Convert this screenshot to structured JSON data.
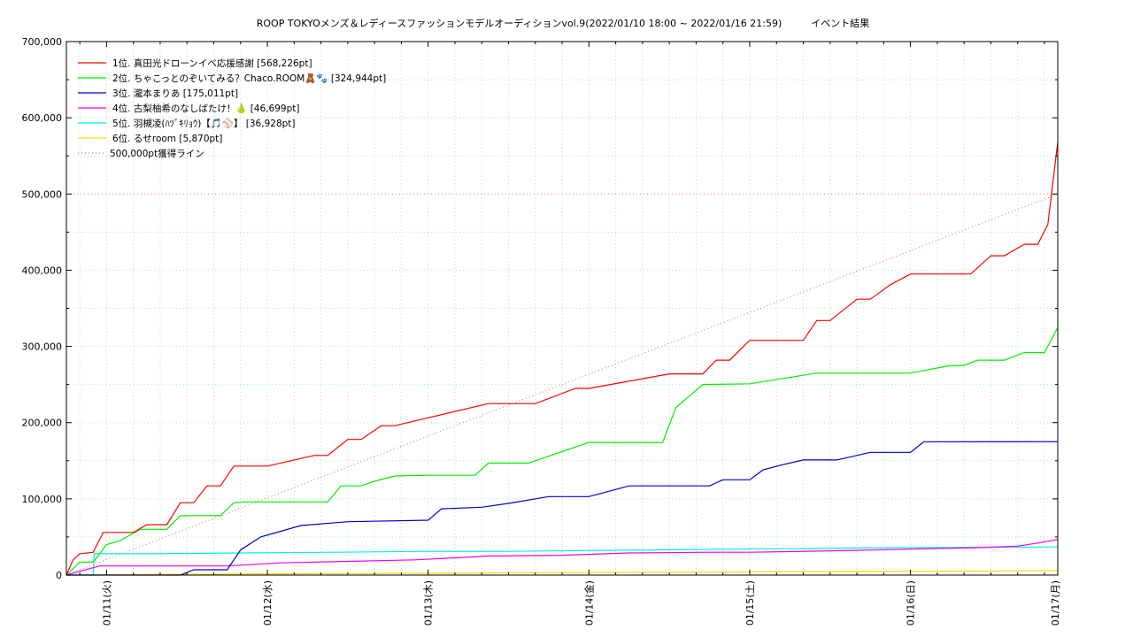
{
  "chart_data": {
    "type": "line",
    "title": "ROOP TOKYOメンズ＆レディースファッションモデルオーディションvol.9(2022/01/10 18:00 ~ 2022/01/16 21:59)　　　イベント結果",
    "xlabel": "",
    "ylabel": "",
    "ylim": [
      0,
      700000
    ],
    "xlim": [
      "2022-01-10T18:00",
      "2022-01-16T21:59"
    ],
    "y_ticks": [
      "0",
      "100,000",
      "200,000",
      "300,000",
      "400,000",
      "500,000",
      "600,000",
      "700,000"
    ],
    "y_tick_values": [
      0,
      100000,
      200000,
      300000,
      400000,
      500000,
      600000,
      700000
    ],
    "x_ticks": [
      "01/11(火)",
      "01/12(水)",
      "01/13(木)",
      "01/14(金)",
      "01/15(土)",
      "01/16(日)",
      "01/17(月)"
    ],
    "x_tick_values": [
      "2022-01-11T00:00",
      "2022-01-12T00:00",
      "2022-01-13T00:00",
      "2022-01-14T00:00",
      "2022-01-15T00:00",
      "2022-01-16T00:00",
      "2022-01-17T00:00"
    ],
    "grid": true,
    "legend_position": "top-left",
    "series": [
      {
        "name": "1位. 真田光ドローンイベ応援感謝 [568,226pt]",
        "color": "#ff0000",
        "x": [
          "2022-01-10T18:00",
          "2022-01-10T19:00",
          "2022-01-10T20:00",
          "2022-01-10T22:00",
          "2022-01-10T23:30",
          "2022-01-11T04:00",
          "2022-01-11T06:00",
          "2022-01-11T09:00",
          "2022-01-11T11:00",
          "2022-01-11T13:00",
          "2022-01-11T15:00",
          "2022-01-11T17:00",
          "2022-01-11T19:00",
          "2022-01-11T21:00",
          "2022-01-12T00:00",
          "2022-01-12T07:00",
          "2022-01-12T09:00",
          "2022-01-12T12:00",
          "2022-01-12T14:00",
          "2022-01-12T17:00",
          "2022-01-12T19:00",
          "2022-01-13T09:00",
          "2022-01-13T12:00",
          "2022-01-13T14:00",
          "2022-01-13T16:00",
          "2022-01-13T22:00",
          "2022-01-14T00:00",
          "2022-01-14T12:00",
          "2022-01-14T14:00",
          "2022-01-14T17:00",
          "2022-01-14T19:00",
          "2022-01-14T21:00",
          "2022-01-15T00:00",
          "2022-01-15T08:00",
          "2022-01-15T10:00",
          "2022-01-15T12:00",
          "2022-01-15T16:00",
          "2022-01-15T18:00",
          "2022-01-15T21:00",
          "2022-01-16T00:00",
          "2022-01-16T09:00",
          "2022-01-16T12:00",
          "2022-01-16T14:00",
          "2022-01-16T17:00",
          "2022-01-16T19:00",
          "2022-01-16T20:30",
          "2022-01-16T21:59"
        ],
        "y": [
          0,
          20000,
          28000,
          30000,
          56000,
          56000,
          66000,
          66000,
          95000,
          95000,
          117000,
          117000,
          143000,
          143000,
          143000,
          157000,
          157000,
          178000,
          178000,
          196000,
          196000,
          225000,
          225000,
          225000,
          225000,
          245000,
          245000,
          264000,
          264000,
          264000,
          282000,
          282000,
          308000,
          308000,
          334000,
          334000,
          362000,
          362000,
          381000,
          395000,
          395000,
          419000,
          419000,
          434000,
          434000,
          460000,
          568226
        ]
      },
      {
        "name": "2位. ちゃこっとのぞいてみる？Chaco.ROOM🧸🐾 [324,944pt]",
        "color": "#00ee00",
        "x": [
          "2022-01-10T18:00",
          "2022-01-10T20:00",
          "2022-01-10T22:00",
          "2022-01-11T00:00",
          "2022-01-11T02:00",
          "2022-01-11T05:00",
          "2022-01-11T09:00",
          "2022-01-11T11:00",
          "2022-01-11T13:00",
          "2022-01-11T17:00",
          "2022-01-11T19:00",
          "2022-01-11T21:00",
          "2022-01-12T00:00",
          "2022-01-12T09:00",
          "2022-01-12T11:00",
          "2022-01-12T14:00",
          "2022-01-12T16:00",
          "2022-01-12T19:00",
          "2022-01-13T00:00",
          "2022-01-13T07:00",
          "2022-01-13T09:00",
          "2022-01-13T13:00",
          "2022-01-13T15:00",
          "2022-01-14T00:00",
          "2022-01-14T08:00",
          "2022-01-14T11:00",
          "2022-01-14T13:00",
          "2022-01-14T15:00",
          "2022-01-14T17:00",
          "2022-01-15T00:00",
          "2022-01-15T10:00",
          "2022-01-15T12:00",
          "2022-01-16T00:00",
          "2022-01-16T06:00",
          "2022-01-16T08:00",
          "2022-01-16T10:00",
          "2022-01-16T14:00",
          "2022-01-16T17:00",
          "2022-01-16T20:00",
          "2022-01-16T21:59"
        ],
        "y": [
          0,
          17000,
          17000,
          40000,
          45000,
          60000,
          60000,
          78000,
          78000,
          78000,
          95000,
          96000,
          96000,
          96000,
          117000,
          117000,
          123000,
          130000,
          131000,
          131000,
          147000,
          147000,
          147000,
          174000,
          174000,
          174000,
          220000,
          235000,
          250000,
          251000,
          265000,
          265000,
          265000,
          275000,
          275000,
          282000,
          282000,
          292000,
          292000,
          324944
        ]
      },
      {
        "name": "3位. 瀧本まりあ [175,011pt]",
        "color": "#0000cc",
        "x": [
          "2022-01-10T18:00",
          "2022-01-11T11:00",
          "2022-01-11T13:00",
          "2022-01-11T18:00",
          "2022-01-11T20:00",
          "2022-01-11T23:00",
          "2022-01-12T05:00",
          "2022-01-12T12:00",
          "2022-01-13T00:00",
          "2022-01-13T02:00",
          "2022-01-13T08:00",
          "2022-01-13T12:00",
          "2022-01-13T18:00",
          "2022-01-14T00:00",
          "2022-01-14T06:00",
          "2022-01-14T18:00",
          "2022-01-14T20:00",
          "2022-01-15T00:00",
          "2022-01-15T02:00",
          "2022-01-15T05:00",
          "2022-01-15T08:00",
          "2022-01-15T13:00",
          "2022-01-15T18:00",
          "2022-01-16T00:00",
          "2022-01-16T02:00",
          "2022-01-16T21:59"
        ],
        "y": [
          0,
          0,
          7000,
          7000,
          33000,
          50000,
          65000,
          70000,
          72000,
          87000,
          89000,
          94000,
          103000,
          103000,
          117000,
          117000,
          125000,
          125000,
          138000,
          145000,
          151000,
          151000,
          161000,
          161000,
          175000,
          175011
        ]
      },
      {
        "name": "4位. 古梨柚希のなしばたけ！🍐 [46,699pt]",
        "color": "#ee00ee",
        "x": [
          "2022-01-10T18:00",
          "2022-01-10T20:00",
          "2022-01-10T23:00",
          "2022-01-11T06:00",
          "2022-01-11T18:00",
          "2022-01-12T02:00",
          "2022-01-12T12:00",
          "2022-01-12T22:00",
          "2022-01-13T09:00",
          "2022-01-13T20:00",
          "2022-01-14T06:00",
          "2022-01-14T18:00",
          "2022-01-15T00:00",
          "2022-01-15T14:00",
          "2022-01-16T00:00",
          "2022-01-16T10:00",
          "2022-01-16T16:00",
          "2022-01-16T19:00",
          "2022-01-16T21:59"
        ],
        "y": [
          0,
          5000,
          12000,
          12000,
          12000,
          16000,
          18000,
          20000,
          25000,
          26000,
          29000,
          30000,
          30000,
          32000,
          34000,
          36000,
          38000,
          42000,
          46699
        ]
      },
      {
        "name": "5位. 羽槻凌(ﾊﾂﾞｷﾘｮｳ)【🎵⚾】 [36,928pt]",
        "color": "#00eeee",
        "x": [
          "2022-01-10T18:00",
          "2022-01-10T22:00",
          "2022-01-10T22:10",
          "2022-01-11T06:00",
          "2022-01-11T20:00",
          "2022-01-12T10:00",
          "2022-01-12T22:00",
          "2022-01-13T10:00",
          "2022-01-13T22:00",
          "2022-01-14T10:00",
          "2022-01-14T22:00",
          "2022-01-15T10:00",
          "2022-01-15T22:00",
          "2022-01-16T10:00",
          "2022-01-16T21:59"
        ],
        "y": [
          0,
          0,
          28000,
          28000,
          29000,
          30000,
          31000,
          31000,
          32000,
          33000,
          34000,
          35000,
          36000,
          36500,
          36928
        ]
      },
      {
        "name": "6位. るせroom [5,870pt]",
        "color": "#ffdd00",
        "x": [
          "2022-01-10T18:00",
          "2022-01-11T12:00",
          "2022-01-12T12:00",
          "2022-01-13T12:00",
          "2022-01-14T12:00",
          "2022-01-15T12:00",
          "2022-01-16T12:00",
          "2022-01-16T21:59"
        ],
        "y": [
          0,
          1000,
          2000,
          3000,
          3800,
          4500,
          5200,
          5870
        ]
      },
      {
        "name": "500,000pt獲得ライン",
        "color": "#dd6666",
        "dashed": true,
        "x": [
          "2022-01-10T18:00",
          "2022-01-16T21:59"
        ],
        "y": [
          0,
          500000
        ]
      }
    ],
    "reference_lines": [
      {
        "y": 500000,
        "color": "#ee8888"
      }
    ]
  }
}
